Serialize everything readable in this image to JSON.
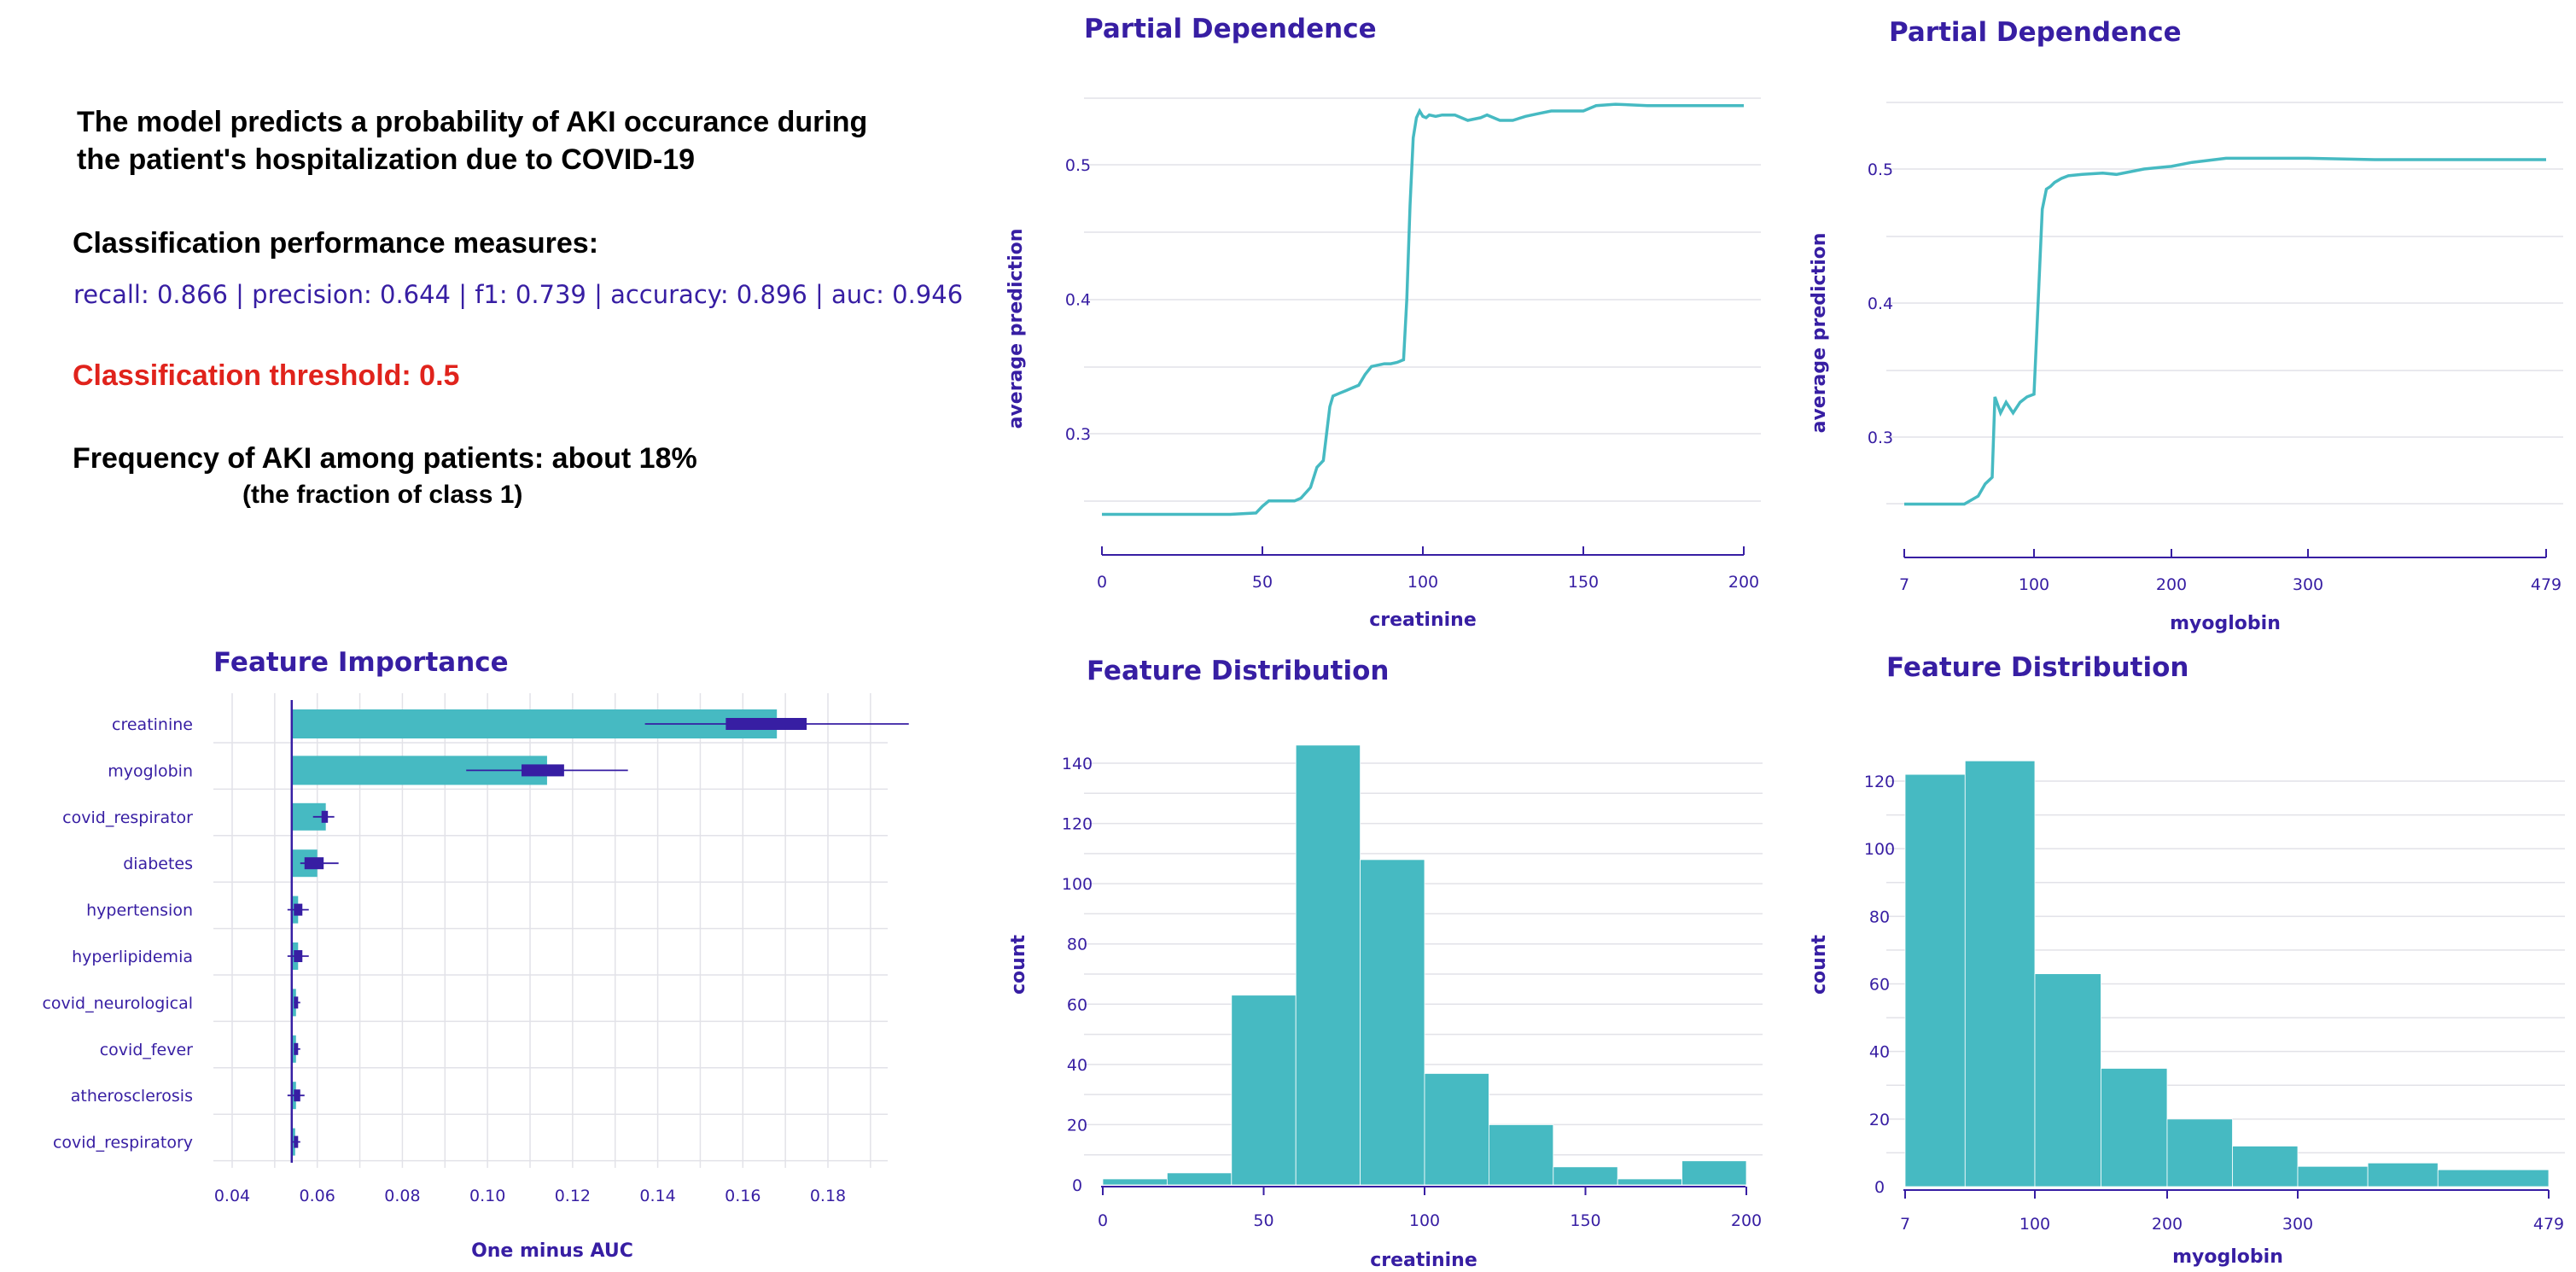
{
  "info": {
    "description_line1": "The model predicts a probability of AKI occurance during",
    "description_line2": "the patient's hospitalization due to COVID-19",
    "performance_title": "Classification performance measures:",
    "performance_values": "recall: 0.866 | precision: 0.644 | f1: 0.739 | accuracy: 0.896 | auc: 0.946",
    "threshold": "Classification threshold: 0.5",
    "frequency": "Frequency of AKI among patients: about 18%",
    "frequency_note": "(the fraction of class 1)"
  },
  "colors": {
    "bar": "#46bac2",
    "accent": "#371ea3",
    "text": "#371ea3",
    "threshold": "#e0231c"
  },
  "chart_data": [
    {
      "id": "pd_creatinine",
      "type": "line",
      "title": "Partial Dependence",
      "xlabel": "creatinine",
      "ylabel": "average prediction",
      "xlim": [
        0,
        200
      ],
      "ylim": [
        0.235,
        0.555
      ],
      "xticks": [
        0,
        50,
        100,
        150,
        200
      ],
      "yticks": [
        0.3,
        0.4,
        0.5
      ],
      "x": [
        0,
        20,
        40,
        48,
        50,
        52,
        55,
        60,
        62,
        65,
        67,
        69,
        70,
        71,
        72,
        74,
        76,
        78,
        80,
        82,
        84,
        86,
        88,
        90,
        92,
        94,
        95,
        96,
        97,
        98,
        99,
        100,
        101,
        102,
        104,
        106,
        110,
        114,
        118,
        120,
        124,
        128,
        132,
        136,
        140,
        150,
        154,
        160,
        170,
        180,
        200
      ],
      "y": [
        0.24,
        0.24,
        0.24,
        0.241,
        0.246,
        0.25,
        0.25,
        0.25,
        0.252,
        0.26,
        0.275,
        0.28,
        0.3,
        0.32,
        0.328,
        0.33,
        0.332,
        0.334,
        0.336,
        0.344,
        0.35,
        0.351,
        0.352,
        0.352,
        0.353,
        0.355,
        0.4,
        0.47,
        0.52,
        0.535,
        0.54,
        0.536,
        0.535,
        0.537,
        0.536,
        0.537,
        0.537,
        0.533,
        0.535,
        0.537,
        0.533,
        0.533,
        0.536,
        0.538,
        0.54,
        0.54,
        0.544,
        0.545,
        0.544,
        0.544,
        0.544
      ]
    },
    {
      "id": "pd_myoglobin",
      "type": "line",
      "title": "Partial Dependence",
      "xlabel": "myoglobin",
      "ylabel": "average prediction",
      "xlim": [
        7,
        479
      ],
      "ylim": [
        0.24,
        0.54
      ],
      "x_scale_note": "tick positions: 7, 100, 200, 300, 479",
      "xticks": [
        7,
        100,
        200,
        300,
        479
      ],
      "yticks": [
        0.3,
        0.4,
        0.5
      ],
      "x": [
        7,
        30,
        50,
        60,
        65,
        70,
        72,
        76,
        80,
        85,
        90,
        95,
        100,
        103,
        106,
        109,
        112,
        115,
        120,
        125,
        135,
        150,
        160,
        180,
        190,
        200,
        215,
        240,
        260,
        300,
        350,
        479
      ],
      "y": [
        0.25,
        0.25,
        0.25,
        0.256,
        0.265,
        0.27,
        0.33,
        0.318,
        0.326,
        0.318,
        0.326,
        0.33,
        0.332,
        0.4,
        0.47,
        0.485,
        0.487,
        0.49,
        0.493,
        0.495,
        0.496,
        0.497,
        0.496,
        0.5,
        0.501,
        0.502,
        0.505,
        0.508,
        0.508,
        0.508,
        0.507,
        0.507
      ]
    },
    {
      "id": "fi",
      "type": "bar",
      "orientation": "horizontal",
      "title": "Feature Importance",
      "xlabel": "One minus AUC",
      "baseline": 0.054,
      "xlim": [
        0.035,
        0.198
      ],
      "xticks": [
        0.04,
        0.06,
        0.08,
        0.1,
        0.12,
        0.14,
        0.16,
        0.18
      ],
      "xtick_labels": [
        "0.04",
        "0.06",
        "0.08",
        "0.10",
        "0.12",
        "0.14",
        "0.16",
        "0.18"
      ],
      "categories": [
        "creatinine",
        "myoglobin",
        "covid_respirator",
        "diabetes",
        "hypertension",
        "hyperlipidemia",
        "covid_neurological",
        "covid_fever",
        "atherosclerosis",
        "covid_respiratory"
      ],
      "values": [
        0.168,
        0.114,
        0.062,
        0.06,
        0.0555,
        0.0555,
        0.055,
        0.055,
        0.055,
        0.0548
      ],
      "box_q1": [
        0.156,
        0.108,
        0.061,
        0.057,
        0.0545,
        0.0545,
        0.0545,
        0.0545,
        0.0545,
        0.0545
      ],
      "box_q3": [
        0.175,
        0.118,
        0.0625,
        0.0615,
        0.0565,
        0.0565,
        0.0555,
        0.0555,
        0.056,
        0.0555
      ],
      "whisker_min": [
        0.137,
        0.095,
        0.059,
        0.056,
        0.053,
        0.053,
        0.0545,
        0.0545,
        0.053,
        0.054
      ],
      "whisker_max": [
        0.199,
        0.133,
        0.064,
        0.065,
        0.058,
        0.058,
        0.056,
        0.056,
        0.057,
        0.056
      ]
    },
    {
      "id": "dist_creatinine",
      "type": "bar",
      "subtype": "histogram",
      "title": "Feature Distribution",
      "xlabel": "creatinine",
      "ylabel": "count",
      "xlim": [
        0,
        200
      ],
      "ylim": [
        0,
        150
      ],
      "xticks": [
        0,
        50,
        100,
        150,
        200
      ],
      "yticks": [
        0,
        20,
        40,
        60,
        80,
        100,
        120,
        140
      ],
      "bin_edges": [
        0,
        20,
        40,
        60,
        80,
        100,
        120,
        140,
        160,
        180,
        200
      ],
      "values": [
        2,
        4,
        63,
        146,
        108,
        37,
        20,
        6,
        2,
        8
      ]
    },
    {
      "id": "dist_myoglobin",
      "type": "bar",
      "subtype": "histogram",
      "title": "Feature Distribution",
      "xlabel": "myoglobin",
      "ylabel": "count",
      "xlim": [
        7,
        479
      ],
      "ylim": [
        0,
        130
      ],
      "xticks": [
        7,
        100,
        200,
        300,
        479
      ],
      "yticks": [
        0,
        20,
        40,
        60,
        80,
        100,
        120
      ],
      "bin_edges": [
        7,
        50,
        100,
        150,
        200,
        250,
        300,
        350,
        400,
        479
      ],
      "values": [
        122,
        126,
        63,
        35,
        20,
        12,
        6,
        7,
        5
      ]
    }
  ]
}
